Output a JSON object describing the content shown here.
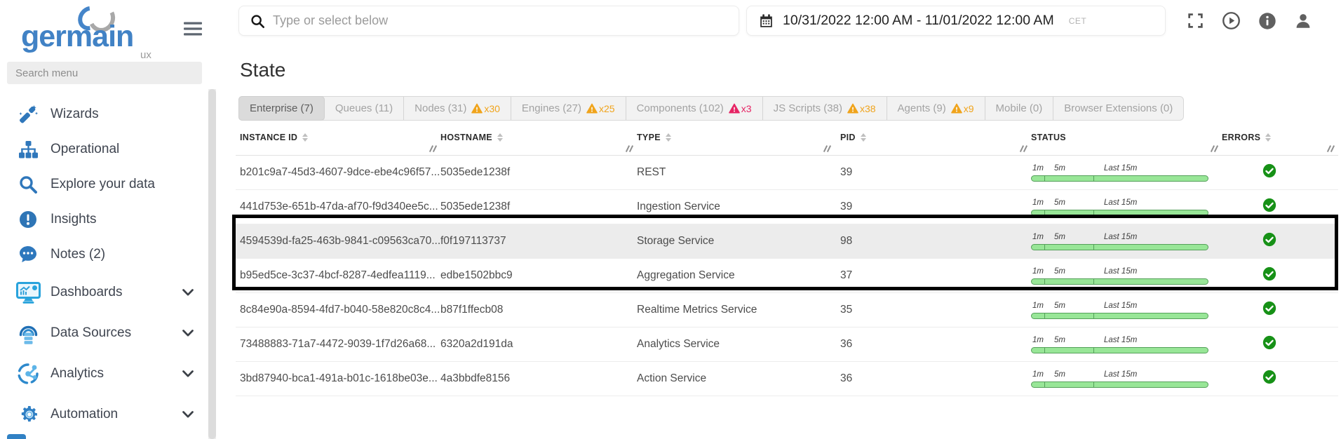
{
  "sidebar": {
    "logo": {
      "brand": "germain",
      "sub": "ux"
    },
    "search_placeholder": "Search menu",
    "items": [
      {
        "label": "Wizards",
        "icon": "wand-icon",
        "chevron": false
      },
      {
        "label": "Operational",
        "icon": "sitemap-icon",
        "chevron": false
      },
      {
        "label": "Explore your data",
        "icon": "search-icon",
        "chevron": false
      },
      {
        "label": "Insights",
        "icon": "insights-icon",
        "chevron": false
      },
      {
        "label": "Notes (2)",
        "icon": "notes-icon",
        "chevron": false
      },
      {
        "label": "Dashboards",
        "icon": "dashboards-icon",
        "chevron": true
      },
      {
        "label": "Data Sources",
        "icon": "data-sources-icon",
        "chevron": true
      },
      {
        "label": "Analytics",
        "icon": "analytics-icon",
        "chevron": true
      },
      {
        "label": "Automation",
        "icon": "automation-icon",
        "chevron": true
      }
    ]
  },
  "topbar": {
    "search_placeholder": "Type or select below",
    "date_range": "10/31/2022 12:00 AM - 11/01/2022 12:00 AM",
    "timezone": "CET"
  },
  "page": {
    "title": "State"
  },
  "tabs": [
    {
      "label": "Enterprise (7)",
      "active": true
    },
    {
      "label": "Queues (11)"
    },
    {
      "label": "Nodes (31)",
      "warn": "x30",
      "warn_color": "orange"
    },
    {
      "label": "Engines (27)",
      "warn": "x25",
      "warn_color": "orange"
    },
    {
      "label": "Components (102)",
      "warn": "x3",
      "warn_color": "red"
    },
    {
      "label": "JS Scripts (38)",
      "warn": "x38",
      "warn_color": "orange"
    },
    {
      "label": "Agents (9)",
      "warn": "x9",
      "warn_color": "orange"
    },
    {
      "label": "Mobile (0)"
    },
    {
      "label": "Browser Extensions (0)"
    }
  ],
  "table": {
    "columns": [
      "INSTANCE ID",
      "HOSTNAME",
      "TYPE",
      "PID",
      "STATUS",
      "ERRORS"
    ],
    "sortable": [
      true,
      true,
      true,
      true,
      false,
      true
    ],
    "status_labels": [
      "1m",
      "5m",
      "Last 15m"
    ],
    "rows": [
      {
        "instance_id": "b201c9a7-45d3-4607-9dce-ebe4c96f57...",
        "hostname": "5035ede1238f",
        "type": "REST",
        "pid": "39",
        "status": "healthy",
        "errors": "none",
        "selected": false
      },
      {
        "instance_id": "441d753e-651b-47da-af70-f9d340ee5c...",
        "hostname": "5035ede1238f",
        "type": "Ingestion Service",
        "pid": "39",
        "status": "healthy",
        "errors": "none",
        "selected": false
      },
      {
        "instance_id": "4594539d-fa25-463b-9841-c09563ca70...",
        "hostname": "f0f197113737",
        "type": "Storage Service",
        "pid": "98",
        "status": "healthy",
        "errors": "none",
        "selected": true
      },
      {
        "instance_id": "b95ed5ce-3c37-4bcf-8287-4edfea1119...",
        "hostname": "edbe1502bbc9",
        "type": "Aggregation Service",
        "pid": "37",
        "status": "healthy",
        "errors": "none",
        "selected": false
      },
      {
        "instance_id": "8c84e90a-8594-4fd7-b040-58e820c8c4...",
        "hostname": "b87f1ffecb08",
        "type": "Realtime Metrics Service",
        "pid": "35",
        "status": "healthy",
        "errors": "none",
        "selected": false
      },
      {
        "instance_id": "73488883-71a7-4472-9039-1f7d26a68...",
        "hostname": "6320a2d191da",
        "type": "Analytics Service",
        "pid": "36",
        "status": "healthy",
        "errors": "none",
        "selected": false
      },
      {
        "instance_id": "3bd87940-bca1-491a-b01c-1618be03e...",
        "hostname": "4a3bbdfe8156",
        "type": "Action Service",
        "pid": "36",
        "status": "healthy",
        "errors": "none",
        "selected": false
      }
    ],
    "highlighted_row_indexes": [
      1,
      2
    ]
  },
  "colors": {
    "orange": "#f0a41c",
    "red": "#e62565",
    "success_green": "#179117",
    "bar_green_fill": "#98e697",
    "bar_green_border": "#55a05a",
    "accent_blue": "#4182c5",
    "highlight_box": "#000000"
  }
}
